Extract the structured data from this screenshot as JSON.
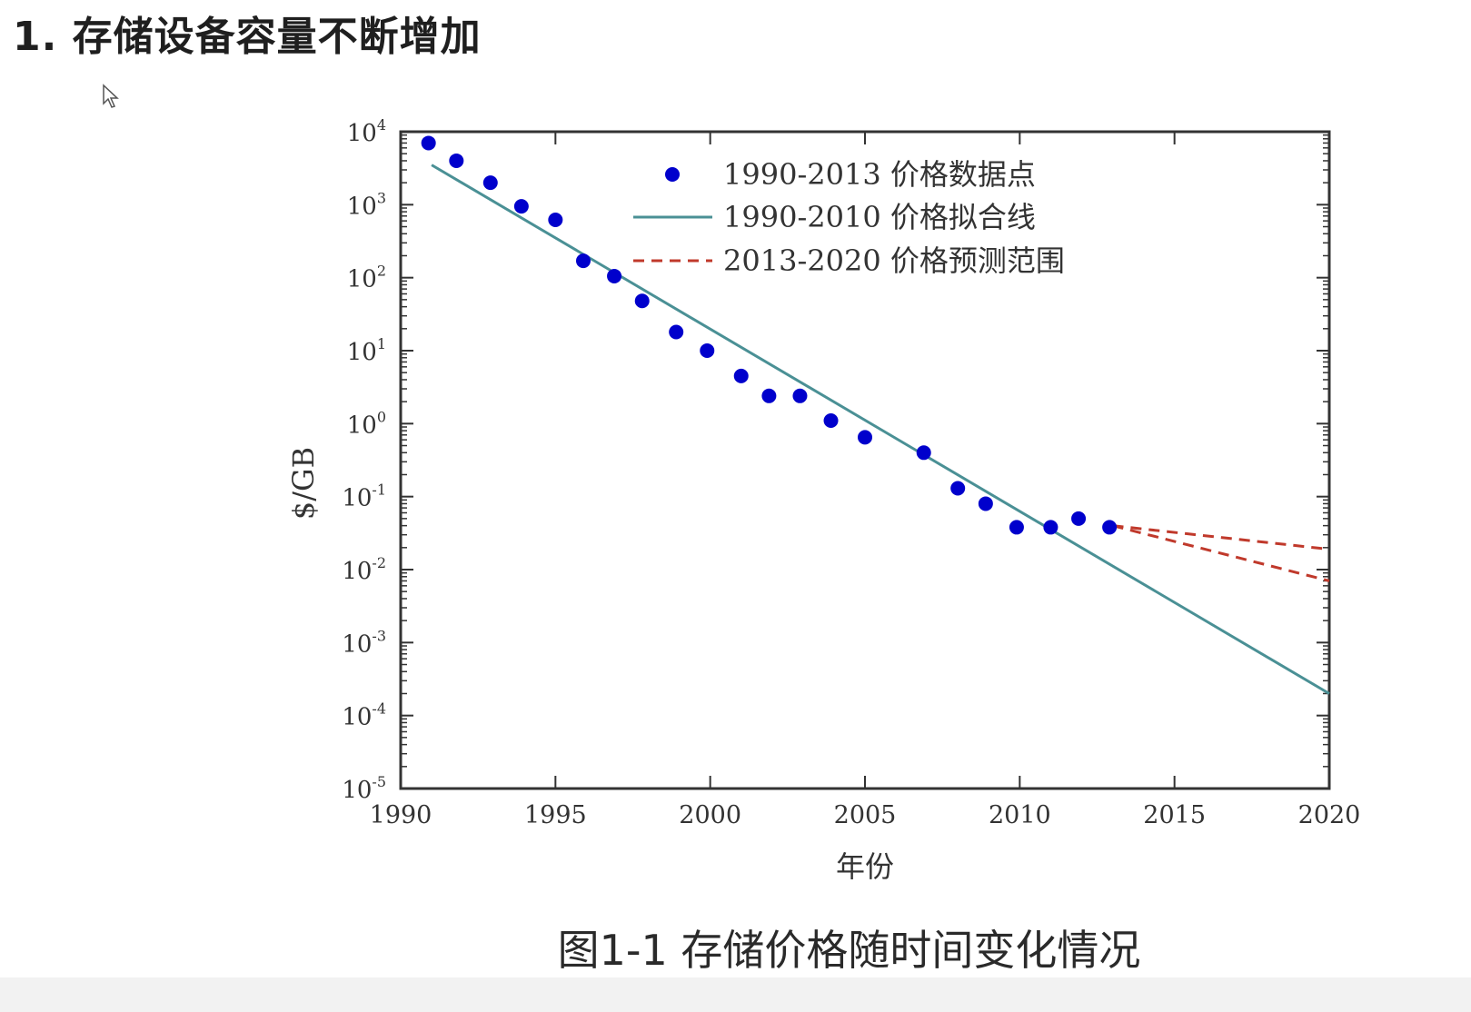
{
  "page": {
    "heading": "1. 存储设备容量不断增加",
    "caption": "图1-1 存储价格随时间变化情况"
  },
  "chart_data": {
    "type": "scatter",
    "y_scale": "log",
    "xlim": [
      1990,
      2020
    ],
    "ylim": [
      1e-05,
      10000
    ],
    "xlabel": "年份",
    "ylabel": "$/GB",
    "x_ticks": [
      1990,
      1995,
      2000,
      2005,
      2010,
      2015,
      2020
    ],
    "y_tick_labels": [
      {
        "base": "10",
        "exp": "4",
        "value": 10000
      },
      {
        "base": "10",
        "exp": "3",
        "value": 1000
      },
      {
        "base": "10",
        "exp": "2",
        "value": 100
      },
      {
        "base": "10",
        "exp": "1",
        "value": 10
      },
      {
        "base": "10",
        "exp": "0",
        "value": 1
      },
      {
        "base": "10",
        "exp": "-1",
        "value": 0.1
      },
      {
        "base": "10",
        "exp": "-2",
        "value": 0.01
      },
      {
        "base": "10",
        "exp": "-3",
        "value": 0.001
      },
      {
        "base": "10",
        "exp": "-4",
        "value": 0.0001
      },
      {
        "base": "10",
        "exp": "-5",
        "value": 1e-05
      }
    ],
    "legend_position": "top-center",
    "series": [
      {
        "name": "1990-2013 价格数据点",
        "kind": "points",
        "color": "#0000cc",
        "points": [
          {
            "x": 1990.9,
            "y": 7000
          },
          {
            "x": 1991.8,
            "y": 4000
          },
          {
            "x": 1992.9,
            "y": 2000
          },
          {
            "x": 1993.9,
            "y": 950
          },
          {
            "x": 1995.0,
            "y": 620
          },
          {
            "x": 1995.9,
            "y": 170
          },
          {
            "x": 1996.9,
            "y": 105
          },
          {
            "x": 1997.8,
            "y": 48
          },
          {
            "x": 1998.9,
            "y": 18
          },
          {
            "x": 1999.9,
            "y": 10
          },
          {
            "x": 2001.0,
            "y": 4.5
          },
          {
            "x": 2001.9,
            "y": 2.4
          },
          {
            "x": 2002.9,
            "y": 2.4
          },
          {
            "x": 2003.9,
            "y": 1.1
          },
          {
            "x": 2005.0,
            "y": 0.65
          },
          {
            "x": 2006.9,
            "y": 0.4
          },
          {
            "x": 2008.0,
            "y": 0.13
          },
          {
            "x": 2008.9,
            "y": 0.08
          },
          {
            "x": 2009.9,
            "y": 0.038
          },
          {
            "x": 2011.0,
            "y": 0.038
          },
          {
            "x": 2011.9,
            "y": 0.05
          },
          {
            "x": 2012.9,
            "y": 0.038
          }
        ]
      },
      {
        "name": "1990-2010 价格拟合线",
        "kind": "line",
        "color": "#4a9095",
        "points": [
          {
            "x": 1991.0,
            "y": 3500
          },
          {
            "x": 2020.0,
            "y": 0.0002
          }
        ]
      },
      {
        "name": "2013-2020 价格预测范围",
        "kind": "dashed",
        "color": "#c0392b",
        "lines": [
          [
            {
              "x": 2013.0,
              "y": 0.04
            },
            {
              "x": 2020.0,
              "y": 0.019
            }
          ],
          [
            {
              "x": 2013.0,
              "y": 0.04
            },
            {
              "x": 2020.0,
              "y": 0.007
            }
          ]
        ]
      }
    ]
  }
}
